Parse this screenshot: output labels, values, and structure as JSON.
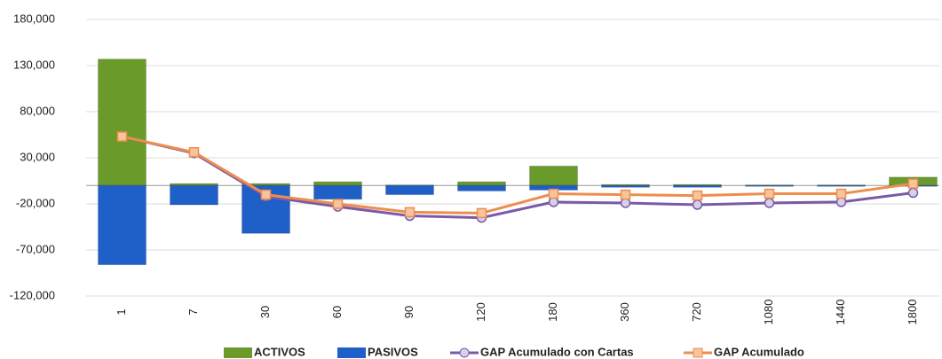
{
  "chart_data": {
    "type": "bar-line",
    "categories": [
      "1",
      "7",
      "30",
      "60",
      "90",
      "120",
      "180",
      "360",
      "720",
      "1080",
      "1440",
      "1800"
    ],
    "series": [
      {
        "name": "ACTIVOS",
        "type": "bar",
        "color": "#6a9a2a",
        "values": [
          137000,
          2000,
          2000,
          4000,
          500,
          4000,
          21000,
          1000,
          1000,
          500,
          500,
          9000
        ]
      },
      {
        "name": "PASIVOS",
        "type": "bar",
        "color": "#1f5fc8",
        "values": [
          -86000,
          -21000,
          -52000,
          -15000,
          -10000,
          -6000,
          -5000,
          -2000,
          -2000,
          -1000,
          -1000,
          -1000
        ]
      },
      {
        "name": "GAP Acumulado con Cartas",
        "type": "line",
        "marker": "circle",
        "color": "#7a5aa8",
        "values": [
          53000,
          35000,
          -12000,
          -23000,
          -33000,
          -35000,
          -18000,
          -19000,
          -21000,
          -19000,
          -18000,
          -8000
        ]
      },
      {
        "name": "GAP Acumulado",
        "type": "line",
        "marker": "square",
        "color": "#ed8d4e",
        "values": [
          53000,
          36000,
          -10000,
          -20000,
          -29000,
          -30000,
          -9000,
          -10000,
          -11000,
          -9000,
          -9000,
          2000
        ]
      }
    ],
    "ylim": [
      -120000,
      180000
    ],
    "yticks": [
      {
        "value": -120000,
        "label": "-120,000"
      },
      {
        "value": -70000,
        "label": "-70,000"
      },
      {
        "value": -20000,
        "label": "-20,000"
      },
      {
        "value": 30000,
        "label": "30,000"
      },
      {
        "value": 80000,
        "label": "80,000"
      },
      {
        "value": 130000,
        "label": "130,000"
      },
      {
        "value": 180000,
        "label": "180,000"
      }
    ],
    "grid": true,
    "legend": "bottom"
  }
}
